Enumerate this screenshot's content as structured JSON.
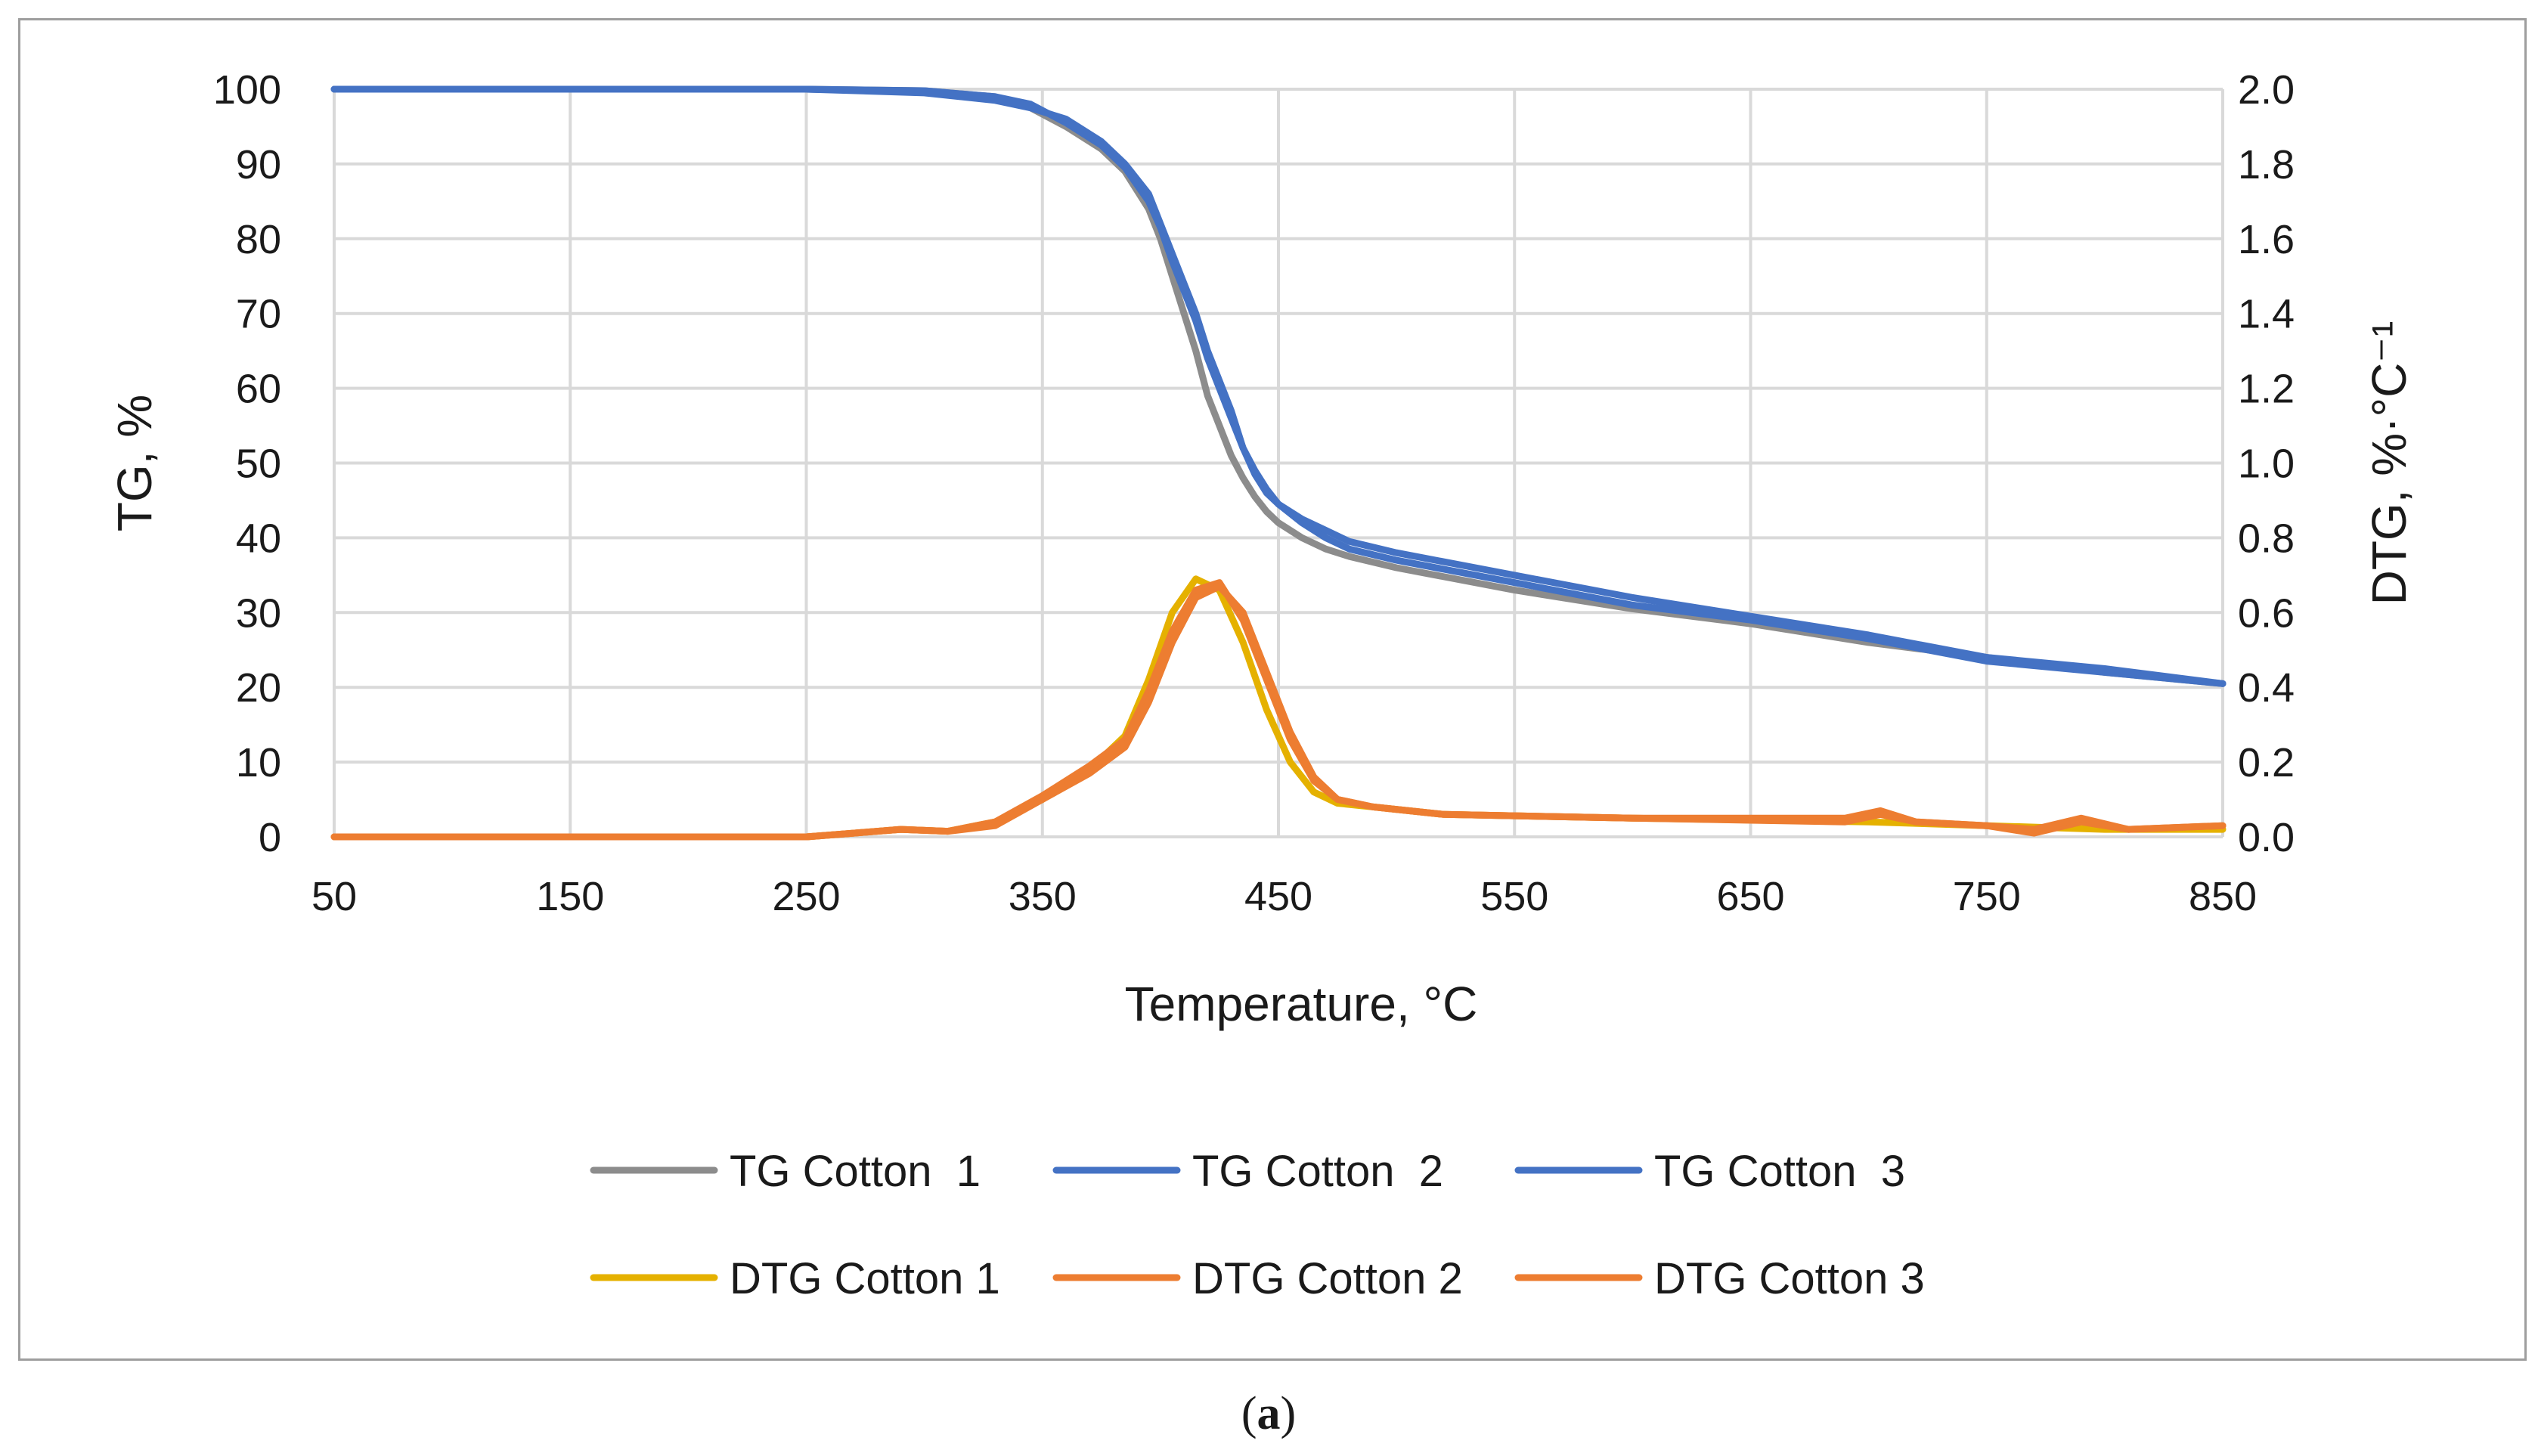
{
  "caption": {
    "open": "(",
    "letter": "a",
    "close": ")"
  },
  "chart_data": {
    "type": "line",
    "title": "",
    "xlabel": "Temperature, °C",
    "ylabel": "TG, %",
    "y2label": "DTG, %·°C⁻¹",
    "xlim": [
      50,
      850
    ],
    "ylim": [
      0,
      100
    ],
    "y2lim": [
      0.0,
      2.0
    ],
    "xticks": [
      50,
      150,
      250,
      350,
      450,
      550,
      650,
      750,
      850
    ],
    "yticks": [
      0,
      10,
      20,
      30,
      40,
      50,
      60,
      70,
      80,
      90,
      100
    ],
    "y2ticks": [
      "0.0",
      "0.2",
      "0.4",
      "0.6",
      "0.8",
      "1.0",
      "1.2",
      "1.4",
      "1.6",
      "1.8",
      "2.0"
    ],
    "grid": true,
    "legend_position": "bottom",
    "series": [
      {
        "name": "TG Cotton  1",
        "axis": "left",
        "color": "#8c8c8c",
        "x": [
          50,
          250,
          300,
          330,
          345,
          360,
          375,
          385,
          395,
          400,
          405,
          410,
          415,
          420,
          425,
          430,
          435,
          440,
          445,
          450,
          460,
          470,
          480,
          500,
          550,
          600,
          650,
          700,
          750,
          800,
          850
        ],
        "y": [
          100,
          100,
          99.8,
          99,
          97.5,
          95,
          92,
          89,
          84,
          80,
          75,
          70,
          65,
          59,
          55,
          51,
          48,
          45.5,
          43.5,
          42,
          40,
          38.5,
          37.5,
          36,
          33,
          30.5,
          28.5,
          26,
          24,
          22,
          20.5
        ]
      },
      {
        "name": "TG Cotton  2",
        "axis": "left",
        "color": "#4472c4",
        "x": [
          50,
          250,
          300,
          330,
          345,
          360,
          375,
          385,
          395,
          400,
          405,
          410,
          415,
          420,
          425,
          430,
          435,
          440,
          445,
          450,
          460,
          470,
          480,
          500,
          550,
          600,
          650,
          700,
          750,
          800,
          850
        ],
        "y": [
          100,
          100,
          99.5,
          98.5,
          97.5,
          96,
          93,
          90,
          86,
          82,
          78,
          74,
          70,
          65,
          61,
          57,
          52,
          49,
          46.5,
          44.5,
          42,
          40,
          38.5,
          37,
          34,
          31,
          29,
          26.5,
          23.5,
          22,
          20.5
        ]
      },
      {
        "name": "TG Cotton  3",
        "axis": "left",
        "color": "#4472c4",
        "x": [
          50,
          250,
          300,
          330,
          345,
          360,
          375,
          385,
          395,
          400,
          405,
          410,
          415,
          420,
          425,
          430,
          435,
          440,
          445,
          450,
          460,
          470,
          480,
          500,
          550,
          600,
          650,
          700,
          750,
          800,
          850
        ],
        "y": [
          100,
          100,
          99.8,
          99,
          98,
          95.5,
          92.5,
          89.5,
          85,
          81.5,
          77,
          73,
          69,
          64,
          60,
          56,
          52,
          48.5,
          46,
          44.5,
          42.5,
          41,
          39.5,
          38,
          35,
          32,
          29.5,
          27,
          24,
          22.5,
          20.5
        ]
      },
      {
        "name": "DTG Cotton 1",
        "axis": "right",
        "color": "#e5b100",
        "x": [
          50,
          250,
          270,
          290,
          310,
          330,
          350,
          370,
          385,
          395,
          405,
          415,
          425,
          435,
          445,
          455,
          465,
          475,
          490,
          520,
          600,
          700,
          750,
          800,
          850
        ],
        "y": [
          0.0,
          0.0,
          0.01,
          0.02,
          0.015,
          0.04,
          0.1,
          0.18,
          0.27,
          0.42,
          0.6,
          0.69,
          0.66,
          0.52,
          0.34,
          0.2,
          0.12,
          0.09,
          0.08,
          0.06,
          0.05,
          0.04,
          0.03,
          0.02,
          0.02
        ]
      },
      {
        "name": "DTG Cotton 2",
        "axis": "right",
        "color": "#ed7d31",
        "x": [
          50,
          250,
          270,
          290,
          310,
          330,
          350,
          370,
          385,
          395,
          405,
          415,
          425,
          435,
          445,
          455,
          465,
          475,
          490,
          520,
          600,
          690,
          705,
          720,
          750,
          770,
          790,
          810,
          850
        ],
        "y": [
          0.0,
          0.0,
          0.01,
          0.02,
          0.015,
          0.04,
          0.11,
          0.19,
          0.26,
          0.39,
          0.55,
          0.66,
          0.68,
          0.58,
          0.42,
          0.26,
          0.15,
          0.1,
          0.08,
          0.06,
          0.05,
          0.05,
          0.07,
          0.04,
          0.03,
          0.01,
          0.04,
          0.02,
          0.03
        ]
      },
      {
        "name": "DTG Cotton 3",
        "axis": "right",
        "color": "#ed7d31",
        "x": [
          50,
          250,
          270,
          290,
          310,
          330,
          350,
          370,
          385,
          395,
          405,
          415,
          425,
          435,
          445,
          455,
          465,
          475,
          490,
          520,
          600,
          690,
          705,
          720,
          750,
          770,
          790,
          810,
          850
        ],
        "y": [
          0.0,
          0.0,
          0.01,
          0.02,
          0.015,
          0.03,
          0.1,
          0.17,
          0.24,
          0.36,
          0.52,
          0.64,
          0.67,
          0.6,
          0.44,
          0.28,
          0.16,
          0.1,
          0.08,
          0.06,
          0.05,
          0.04,
          0.06,
          0.04,
          0.03,
          0.02,
          0.05,
          0.02,
          0.03
        ]
      }
    ]
  }
}
